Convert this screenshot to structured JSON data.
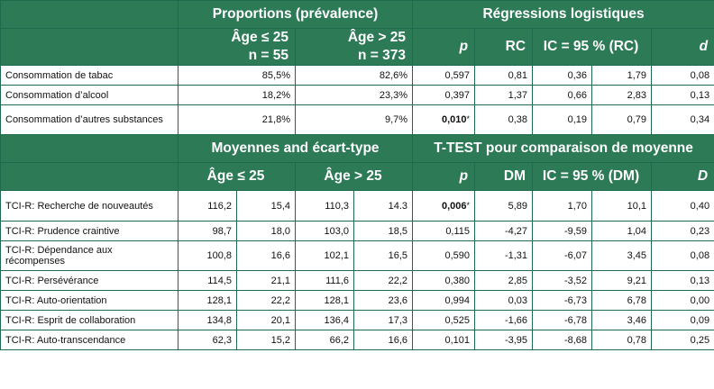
{
  "section1": {
    "group_headers": {
      "prevalence": "Proportions (prévalence)",
      "regression": "Régressions logistiques"
    },
    "subheaders": {
      "age_le25_line1": "Âge ≤ 25",
      "age_le25_line2": "n = 55",
      "age_gt25_line1": "Âge > 25",
      "age_gt25_line2": "n = 373",
      "p": "p",
      "rc": "RC",
      "ic": "IC = 95 % (RC)",
      "d": "d"
    },
    "rows": [
      {
        "label": "Consommation de tabac",
        "le25": "85,5%",
        "gt25": "82,6%",
        "p": "0,597",
        "p_sig": false,
        "rc": "0,81",
        "ic_low": "0,36",
        "ic_high": "1,79",
        "d": "0,08"
      },
      {
        "label": "Consommation d’alcool",
        "le25": "18,2%",
        "gt25": "23,3%",
        "p": "0,397",
        "p_sig": false,
        "rc": "1,37",
        "ic_low": "0,66",
        "ic_high": "2,83",
        "d": "0,13"
      },
      {
        "label": "Consommation d’autres substances",
        "le25": "21,8%",
        "gt25": "9,7%",
        "p": "0,010",
        "p_sig": true,
        "rc": "0,38",
        "ic_low": "0,19",
        "ic_high": "0,79",
        "d": "0,34"
      }
    ]
  },
  "section2": {
    "group_headers": {
      "means": "Moyennes and écart-type",
      "ttest": "T-TEST pour comparaison de moyenne"
    },
    "subheaders": {
      "age_le25": "Âge ≤ 25",
      "age_gt25": "Âge > 25",
      "p": "p",
      "dm": "DM",
      "ic": "IC = 95 % (DM)",
      "d": "D"
    },
    "rows": [
      {
        "label": "TCI-R: Recherche de nouveautés",
        "m1": "116,2",
        "sd1": "15,4",
        "m2": "110,3",
        "sd2": "14.3",
        "p": "0,006",
        "p_sig": true,
        "dm": "5,89",
        "ic_low": "1,70",
        "ic_high": "10,1",
        "d": "0,40"
      },
      {
        "label": "TCI-R: Prudence craintive",
        "m1": "98,7",
        "sd1": "18,0",
        "m2": "103,0",
        "sd2": "18,5",
        "p": "0,115",
        "p_sig": false,
        "dm": "-4,27",
        "ic_low": "-9,59",
        "ic_high": "1,04",
        "d": "0,23"
      },
      {
        "label": "TCI-R: Dépendance aux récompenses",
        "m1": "100,8",
        "sd1": "16,6",
        "m2": "102,1",
        "sd2": "16,5",
        "p": "0,590",
        "p_sig": false,
        "dm": "-1,31",
        "ic_low": "-6,07",
        "ic_high": "3,45",
        "d": "0,08"
      },
      {
        "label": "TCI-R: Persévérance",
        "m1": "114,5",
        "sd1": "21,1",
        "m2": "111,6",
        "sd2": "22,2",
        "p": "0,380",
        "p_sig": false,
        "dm": "2,85",
        "ic_low": "-3,52",
        "ic_high": "9,21",
        "d": "0,13"
      },
      {
        "label": "TCI-R: Auto-orientation",
        "m1": "128,1",
        "sd1": "22,2",
        "m2": "128,1",
        "sd2": "23,6",
        "p": "0,994",
        "p_sig": false,
        "dm": "0,03",
        "ic_low": "-6,73",
        "ic_high": "6,78",
        "d": "0,00"
      },
      {
        "label": "TCI-R: Esprit de collaboration",
        "m1": "134,8",
        "sd1": "20,1",
        "m2": "136,4",
        "sd2": "17,3",
        "p": "0,525",
        "p_sig": false,
        "dm": "-1,66",
        "ic_low": "-6,78",
        "ic_high": "3,46",
        "d": "0,09"
      },
      {
        "label": "TCI-R: Auto-transcendance",
        "m1": "62,3",
        "sd1": "15,2",
        "m2": "66,2",
        "sd2": "16,6",
        "p": "0,101",
        "p_sig": false,
        "dm": "-3,95",
        "ic_low": "-8,68",
        "ic_high": "0,78",
        "d": "0,25"
      }
    ]
  },
  "significance_marker": "*",
  "colors": {
    "header_bg": "#2d7a57",
    "header_text": "#ffffff",
    "border": "#1e6a4c"
  }
}
